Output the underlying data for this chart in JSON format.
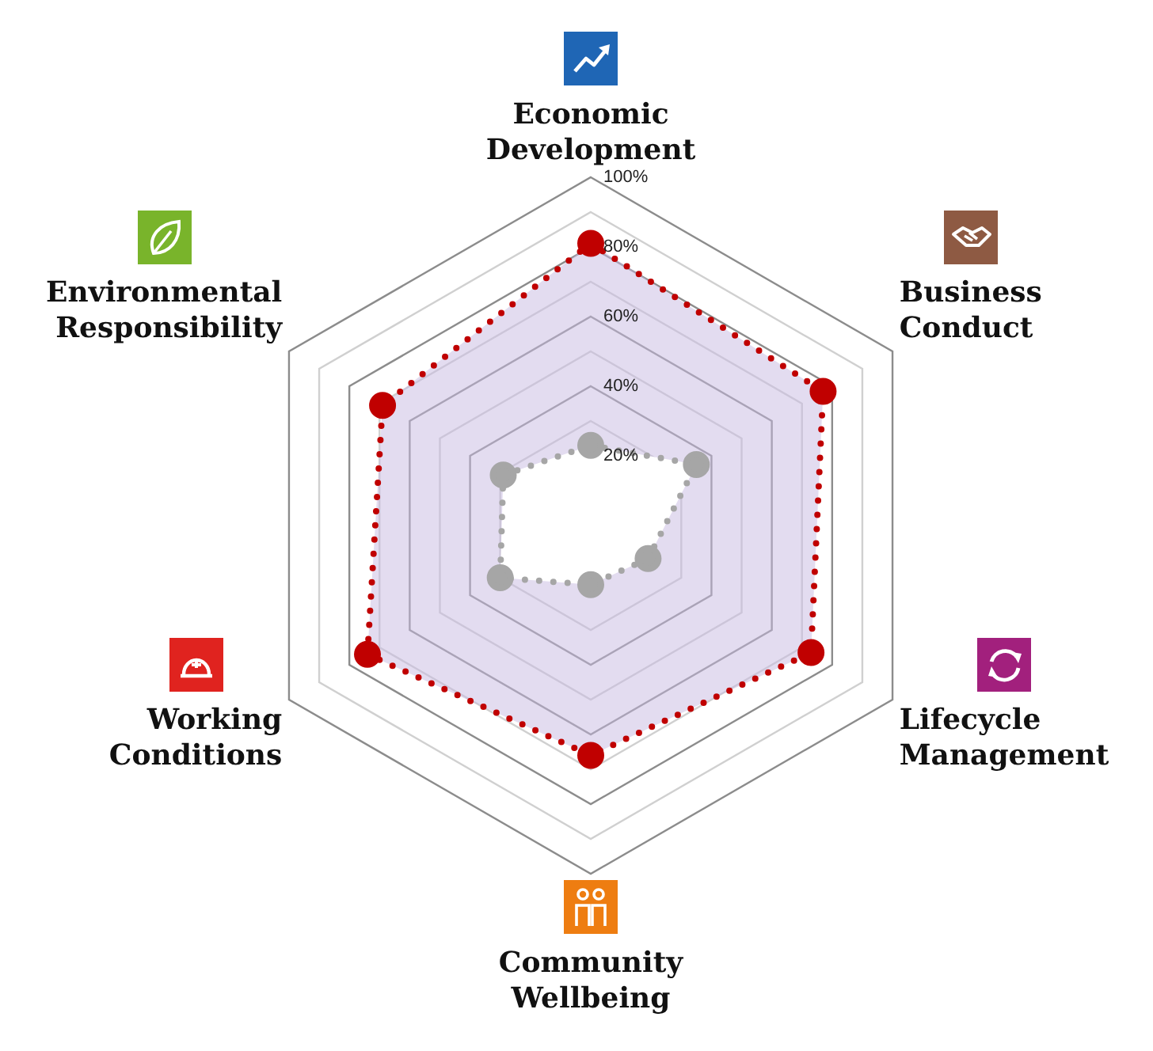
{
  "chart_data": {
    "type": "radar",
    "categories": [
      "Economic Development",
      "Business Conduct",
      "Lifecycle Management",
      "Community Wellbeing",
      "Working Conditions",
      "Environmental Responsibility"
    ],
    "series": [
      {
        "color": "#c00000",
        "values": [
          81,
          77,
          73,
          66,
          74,
          69
        ]
      },
      {
        "color": "#a6a6a6",
        "values": [
          23,
          35,
          19,
          17,
          30,
          29
        ]
      }
    ],
    "ylim": [
      0,
      100
    ],
    "yticks": [
      {
        "value": 20,
        "label": "20%"
      },
      {
        "value": 40,
        "label": "40%"
      },
      {
        "value": 60,
        "label": "60%"
      },
      {
        "value": 80,
        "label": "80%"
      },
      {
        "value": 100,
        "label": "100%"
      }
    ],
    "grid": true,
    "marker": "circle",
    "line_style": "dotted",
    "legend": false
  }
}
